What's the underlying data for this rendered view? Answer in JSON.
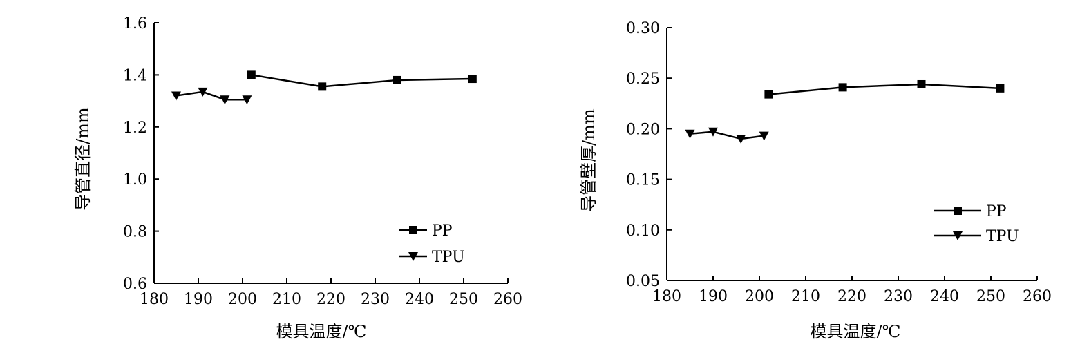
{
  "chart_data": [
    {
      "type": "line",
      "xlabel": "模具温度/℃",
      "ylabel": "导管直径/mm",
      "xlim": [
        180,
        260
      ],
      "ylim": [
        0.6,
        1.6
      ],
      "xticks": [
        "180",
        "190",
        "200",
        "210",
        "220",
        "230",
        "240",
        "250",
        "260"
      ],
      "yticks": [
        "0.6",
        "0.8",
        "1.0",
        "1.2",
        "1.4",
        "1.6"
      ],
      "grid": false,
      "legend_position": "bottom-right",
      "series": [
        {
          "name": "PP",
          "marker": "square",
          "x": [
            202,
            218,
            235,
            252
          ],
          "y": [
            1.4,
            1.355,
            1.38,
            1.385
          ]
        },
        {
          "name": "TPU",
          "marker": "triangle-down",
          "x": [
            185,
            191,
            196,
            201
          ],
          "y": [
            1.32,
            1.335,
            1.305,
            1.305
          ]
        }
      ]
    },
    {
      "type": "line",
      "xlabel": "模具温度/℃",
      "ylabel": "导管壁厚/mm",
      "xlim": [
        180,
        260
      ],
      "ylim": [
        0.05,
        0.3
      ],
      "xticks": [
        "180",
        "190",
        "200",
        "210",
        "220",
        "230",
        "240",
        "250",
        "260"
      ],
      "yticks": [
        "0.05",
        "0.10",
        "0.15",
        "0.20",
        "0.25",
        "0.30"
      ],
      "grid": false,
      "legend_position": "right",
      "series": [
        {
          "name": "PP",
          "marker": "square",
          "x": [
            202,
            218,
            235,
            252
          ],
          "y": [
            0.234,
            0.241,
            0.244,
            0.24
          ]
        },
        {
          "name": "TPU",
          "marker": "triangle-down",
          "x": [
            185,
            190,
            196,
            201
          ],
          "y": [
            0.195,
            0.197,
            0.19,
            0.193
          ]
        }
      ]
    }
  ]
}
